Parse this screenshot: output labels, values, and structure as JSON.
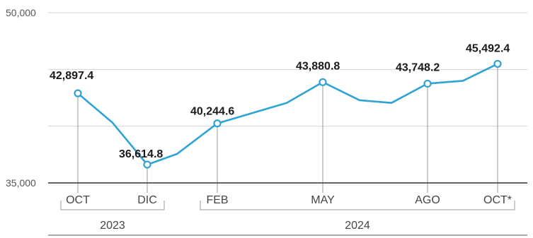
{
  "chart_data": {
    "type": "line",
    "title": "",
    "xlabel": "",
    "ylabel": "",
    "ylim": [
      35000,
      50000
    ],
    "y_ticks": [
      {
        "value": 50000,
        "label": "50,000"
      },
      {
        "value": 35000,
        "label": "35,000"
      }
    ],
    "grid": true,
    "line_color": "#2ea3d4",
    "points": [
      {
        "x": 0,
        "y": 42897.4
      },
      {
        "x": 1,
        "y": 40300.0
      },
      {
        "x": 2,
        "y": 36614.8
      },
      {
        "x": 2.5,
        "y": 37550.0
      },
      {
        "x": 4,
        "y": 40244.6
      },
      {
        "x": 5,
        "y": 42050.0
      },
      {
        "x": 6,
        "y": 43880.8
      },
      {
        "x": 6.5,
        "y": 42290.0
      },
      {
        "x": 7,
        "y": 42050.0
      },
      {
        "x": 8,
        "y": 43748.2
      },
      {
        "x": 8.5,
        "y": 44000.0
      },
      {
        "x": 9,
        "y": 45492.4
      }
    ],
    "labeled_points": [
      {
        "x": 0,
        "value": 42897.4,
        "label": "42,897.4",
        "tick": "OCT"
      },
      {
        "x": 2,
        "value": 36614.8,
        "label": "36,614.8",
        "tick": "DIC"
      },
      {
        "x": 4,
        "value": 40244.6,
        "label": "40,244.6",
        "tick": "FEB"
      },
      {
        "x": 6,
        "value": 43880.8,
        "label": "43,880.8",
        "tick": "MAY"
      },
      {
        "x": 8,
        "value": 43748.2,
        "label": "43,748.2",
        "tick": "AGO"
      },
      {
        "x": 9,
        "value": 45492.4,
        "label": "45,492.4",
        "tick": "OCT*"
      }
    ],
    "year_groups": [
      {
        "label": "2023",
        "from": 0,
        "to": 2
      },
      {
        "label": "2024",
        "from": 4,
        "to": 9
      }
    ]
  }
}
